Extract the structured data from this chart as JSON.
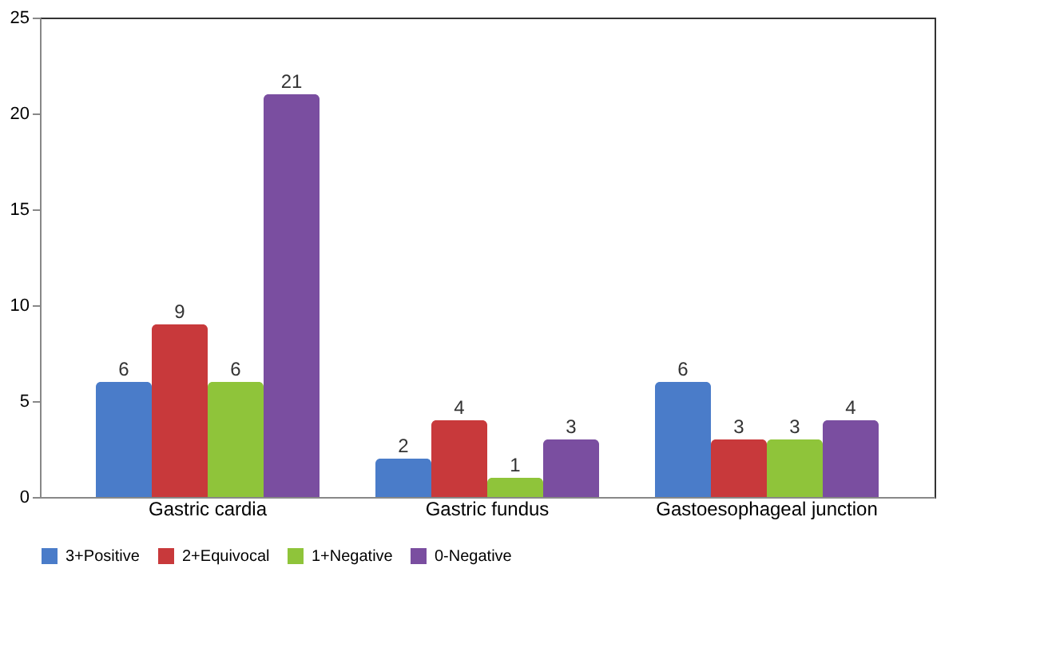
{
  "chart_data": {
    "type": "bar",
    "categories": [
      "Gastric cardia",
      "Gastric fundus",
      "Gastoesophageal junction"
    ],
    "series": [
      {
        "name": "3+Positive",
        "color": "#4a7cc9",
        "values": [
          6,
          2,
          6
        ]
      },
      {
        "name": "2+Equivocal",
        "color": "#c8393b",
        "values": [
          9,
          4,
          3
        ]
      },
      {
        "name": "1+Negative",
        "color": "#8fc43a",
        "values": [
          6,
          1,
          3
        ]
      },
      {
        "name": "0-Negative",
        "color": "#7a4ea0",
        "values": [
          21,
          3,
          4
        ]
      }
    ],
    "ylim": [
      0,
      25
    ],
    "yticks": [
      0,
      5,
      10,
      15,
      20,
      25
    ],
    "grid": false,
    "legend": "bottom",
    "data_labels": true
  }
}
